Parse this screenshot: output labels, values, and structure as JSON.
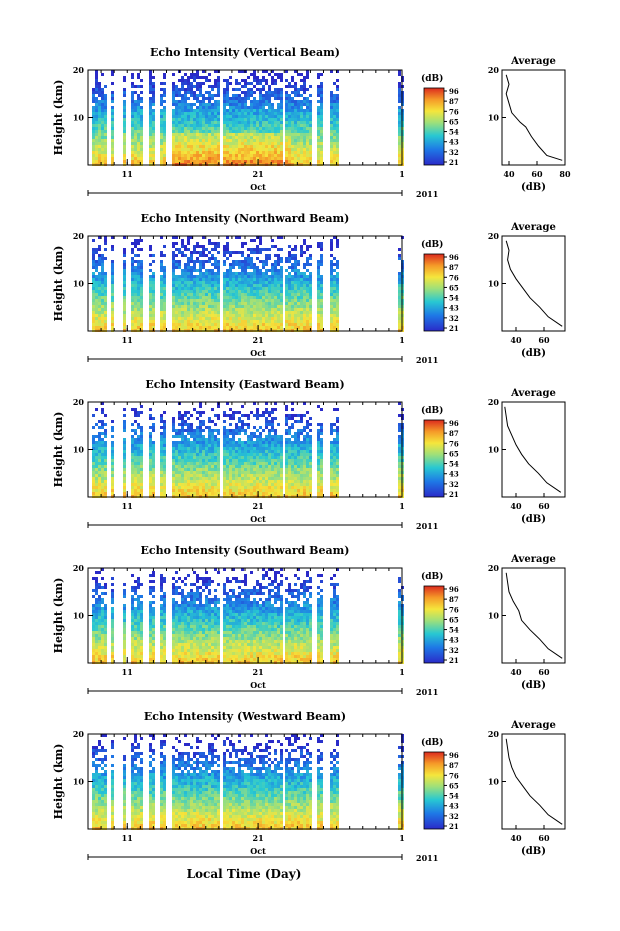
{
  "figure": {
    "xlabel": "Local Time (Day)",
    "month_label": "Oct",
    "year_label": "2011",
    "colorbar_unit": "(dB)",
    "colorbar_ticks": [
      "96",
      "87",
      "76",
      "65",
      "54",
      "43",
      "32",
      "21"
    ],
    "average_title": "Average",
    "average_xlabel": "(dB)"
  },
  "chart_data": [
    {
      "type": "heatmap",
      "title": "Echo Intensity (Vertical Beam)",
      "ylabel": "Height (km)",
      "ylim": [
        0,
        20
      ],
      "yticks": [
        "20",
        "10"
      ],
      "xticks": [
        "11",
        "21",
        "1"
      ],
      "xlim_days": [
        8,
        32
      ],
      "color_range_db": [
        21,
        96
      ],
      "profile": {
        "title": "Average",
        "xlabel": "(dB)",
        "xticks": [
          "40",
          "60",
          "80"
        ],
        "xlim": [
          35,
          80
        ],
        "ylim": [
          0,
          20
        ],
        "points": [
          [
            78,
            1
          ],
          [
            67,
            2
          ],
          [
            61,
            4
          ],
          [
            56,
            6
          ],
          [
            52,
            8
          ],
          [
            48,
            9
          ],
          [
            42,
            11
          ],
          [
            40,
            13
          ],
          [
            38,
            15
          ],
          [
            40,
            17
          ],
          [
            38,
            19
          ]
        ]
      }
    },
    {
      "type": "heatmap",
      "title": "Echo Intensity (Northward Beam)",
      "ylabel": "Height (km)",
      "ylim": [
        0,
        20
      ],
      "yticks": [
        "20",
        "10"
      ],
      "xticks": [
        "11",
        "21",
        "1"
      ],
      "xlim_days": [
        8,
        32
      ],
      "color_range_db": [
        21,
        96
      ],
      "profile": {
        "title": "Average",
        "xlabel": "(dB)",
        "xticks": [
          "40",
          "60"
        ],
        "xlim": [
          30,
          75
        ],
        "ylim": [
          0,
          20
        ],
        "points": [
          [
            73,
            1
          ],
          [
            63,
            3
          ],
          [
            57,
            5
          ],
          [
            50,
            7
          ],
          [
            45,
            9
          ],
          [
            40,
            11
          ],
          [
            36,
            13
          ],
          [
            34,
            15
          ],
          [
            35,
            17
          ],
          [
            33,
            19
          ]
        ]
      }
    },
    {
      "type": "heatmap",
      "title": "Echo Intensity (Eastward Beam)",
      "ylabel": "Height (km)",
      "ylim": [
        0,
        20
      ],
      "yticks": [
        "20",
        "10"
      ],
      "xticks": [
        "11",
        "21",
        "1"
      ],
      "xlim_days": [
        8,
        32
      ],
      "color_range_db": [
        21,
        96
      ],
      "profile": {
        "title": "Average",
        "xlabel": "(dB)",
        "xticks": [
          "40",
          "60"
        ],
        "xlim": [
          30,
          75
        ],
        "ylim": [
          0,
          20
        ],
        "points": [
          [
            72,
            1
          ],
          [
            62,
            3
          ],
          [
            56,
            5
          ],
          [
            49,
            7
          ],
          [
            44,
            9
          ],
          [
            40,
            11
          ],
          [
            37,
            13
          ],
          [
            34,
            15
          ],
          [
            33,
            17
          ],
          [
            32,
            19
          ]
        ]
      }
    },
    {
      "type": "heatmap",
      "title": "Echo Intensity (Southward Beam)",
      "ylabel": "Height (km)",
      "ylim": [
        0,
        20
      ],
      "yticks": [
        "20",
        "10"
      ],
      "xticks": [
        "11",
        "21",
        "1"
      ],
      "xlim_days": [
        8,
        32
      ],
      "color_range_db": [
        21,
        96
      ],
      "profile": {
        "title": "Average",
        "xlabel": "(dB)",
        "xticks": [
          "40",
          "60"
        ],
        "xlim": [
          30,
          75
        ],
        "ylim": [
          0,
          20
        ],
        "points": [
          [
            73,
            1
          ],
          [
            63,
            3
          ],
          [
            57,
            5
          ],
          [
            50,
            7
          ],
          [
            44,
            9
          ],
          [
            42,
            11
          ],
          [
            38,
            13
          ],
          [
            35,
            15
          ],
          [
            34,
            17
          ],
          [
            33,
            19
          ]
        ]
      }
    },
    {
      "type": "heatmap",
      "title": "Echo Intensity (Westward Beam)",
      "ylabel": "Height (km)",
      "ylim": [
        0,
        20
      ],
      "yticks": [
        "20",
        "10"
      ],
      "xticks": [
        "11",
        "21",
        "1"
      ],
      "xlim_days": [
        8,
        32
      ],
      "color_range_db": [
        21,
        96
      ],
      "profile": {
        "title": "Average",
        "xlabel": "(dB)",
        "xticks": [
          "40",
          "60"
        ],
        "xlim": [
          30,
          75
        ],
        "ylim": [
          0,
          20
        ],
        "points": [
          [
            73,
            1
          ],
          [
            63,
            3
          ],
          [
            57,
            5
          ],
          [
            50,
            7
          ],
          [
            45,
            9
          ],
          [
            40,
            11
          ],
          [
            37,
            13
          ],
          [
            35,
            15
          ],
          [
            34,
            17
          ],
          [
            33,
            19
          ]
        ]
      }
    }
  ]
}
